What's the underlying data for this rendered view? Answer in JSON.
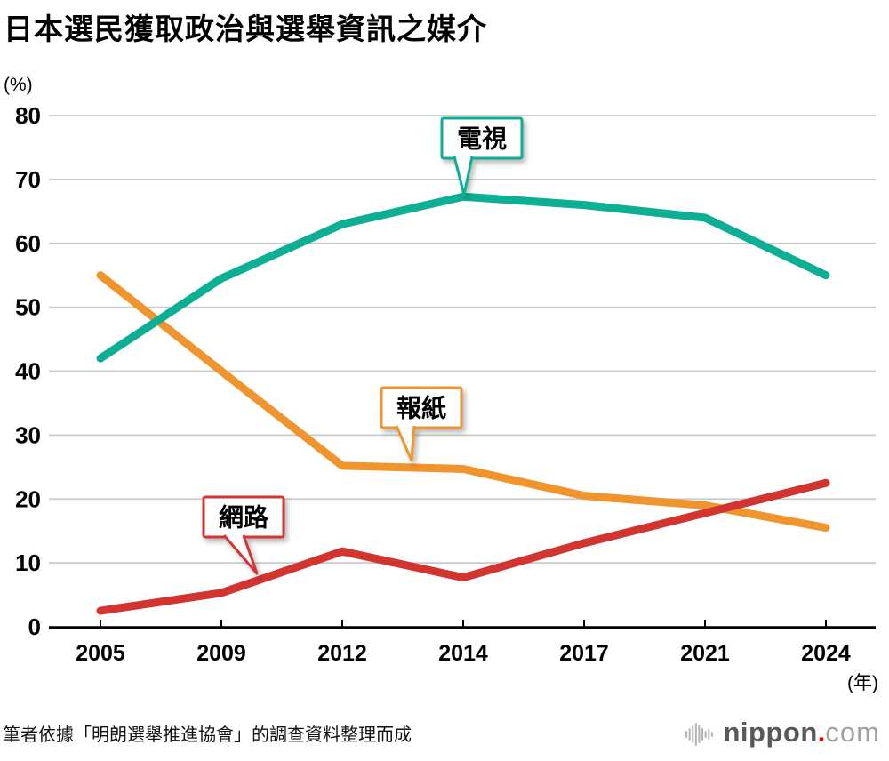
{
  "page": {
    "title": "日本選民獲取政治與選舉資訊之媒介",
    "y_axis_unit": "(%)",
    "x_axis_unit": "(年)",
    "source_note": "筆者依據「明朗選舉推進協會」的調查資料整理而成"
  },
  "logo": {
    "icon": "soundwave-bars-icon",
    "name": "nippon",
    "dot": ".",
    "tld": "com",
    "colors": {
      "bars_gray": "#b5b5b6",
      "text_dark": "#595757",
      "dot_red": "#e60012",
      "text_light": "#9fa0a0"
    }
  },
  "chart_data": {
    "type": "line",
    "title": "日本選民獲取政治與選舉資訊之媒介",
    "xlabel": "(年)",
    "ylabel": "(%)",
    "x_categories": [
      "2005",
      "2009",
      "2012",
      "2014",
      "2017",
      "2021",
      "2024"
    ],
    "y_ticks": [
      0,
      10,
      20,
      30,
      40,
      50,
      60,
      70,
      80
    ],
    "ylim": [
      0,
      80
    ],
    "grid": "horizontal",
    "legend_position": "inline-callout-bubbles",
    "colors": {
      "grid": "#c9c9c9",
      "axis": "#000000",
      "tick_label": "#000000"
    },
    "series": [
      {
        "key": "tv",
        "name": "電視",
        "color": "#0daf94",
        "values": [
          42,
          54.5,
          63,
          67.3,
          66,
          64,
          55
        ]
      },
      {
        "key": "newspaper",
        "name": "報紙",
        "color": "#f0942e",
        "values": [
          55,
          40,
          25.2,
          24.7,
          20.5,
          19,
          15.5
        ]
      },
      {
        "key": "internet",
        "name": "網路",
        "color": "#d23530",
        "values": [
          2.5,
          5.3,
          11.8,
          7.7,
          13.1,
          17.8,
          22.5
        ]
      }
    ]
  }
}
